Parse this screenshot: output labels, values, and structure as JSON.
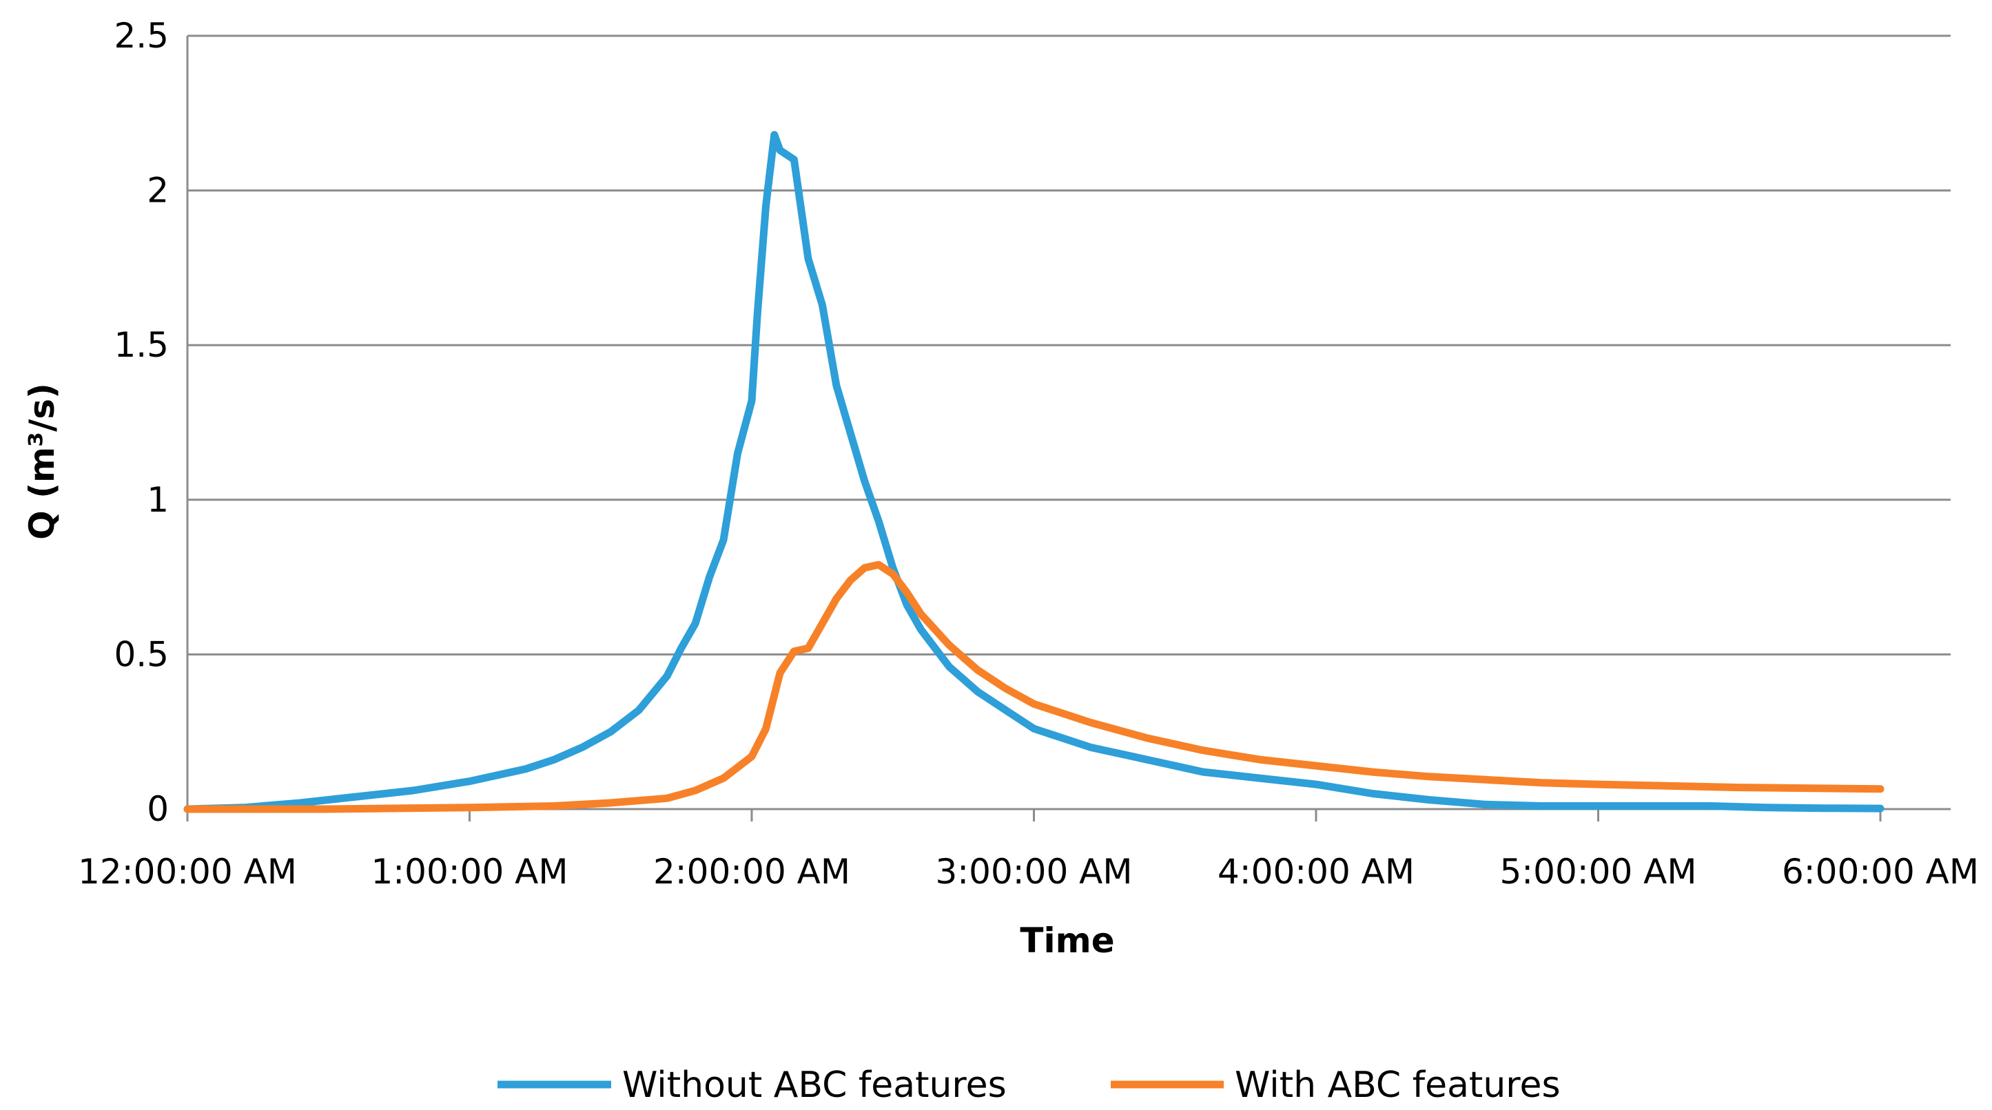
{
  "chart_data": {
    "type": "line",
    "title": "",
    "xlabel": "Time",
    "ylabel": "Q (m³/s)",
    "x_unit": "hours",
    "xlim": [
      0,
      6.25
    ],
    "ylim": [
      0,
      2.5
    ],
    "xticks": [
      {
        "value": 0,
        "label": "12:00:00 AM"
      },
      {
        "value": 1,
        "label": "1:00:00 AM"
      },
      {
        "value": 2,
        "label": "2:00:00 AM"
      },
      {
        "value": 3,
        "label": "3:00:00 AM"
      },
      {
        "value": 4,
        "label": "4:00:00 AM"
      },
      {
        "value": 5,
        "label": "5:00:00 AM"
      },
      {
        "value": 6,
        "label": "6:00:00 AM"
      }
    ],
    "yticks": [
      {
        "value": 0,
        "label": "0"
      },
      {
        "value": 0.5,
        "label": "0.5"
      },
      {
        "value": 1,
        "label": "1"
      },
      {
        "value": 1.5,
        "label": "1.5"
      },
      {
        "value": 2,
        "label": "2"
      },
      {
        "value": 2.5,
        "label": "2.5"
      }
    ],
    "grid": {
      "horizontal": true,
      "vertical": false
    },
    "legend_position": "bottom",
    "series": [
      {
        "name": "Without ABC features",
        "color": "#2e9fd8",
        "x": [
          0,
          0.2,
          0.4,
          0.6,
          0.8,
          1.0,
          1.2,
          1.3,
          1.4,
          1.5,
          1.6,
          1.7,
          1.75,
          1.8,
          1.85,
          1.9,
          1.95,
          2.0,
          2.02,
          2.05,
          2.08,
          2.1,
          2.15,
          2.2,
          2.25,
          2.3,
          2.4,
          2.45,
          2.5,
          2.55,
          2.6,
          2.7,
          2.8,
          2.9,
          3.0,
          3.2,
          3.4,
          3.6,
          3.8,
          4.0,
          4.2,
          4.4,
          4.6,
          4.8,
          5.0,
          5.2,
          5.4,
          5.6,
          5.8,
          6.0
        ],
        "y": [
          0,
          0.005,
          0.02,
          0.04,
          0.06,
          0.09,
          0.13,
          0.16,
          0.2,
          0.25,
          0.32,
          0.43,
          0.52,
          0.6,
          0.75,
          0.87,
          1.15,
          1.32,
          1.6,
          1.95,
          2.18,
          2.13,
          2.1,
          1.78,
          1.63,
          1.37,
          1.06,
          0.93,
          0.78,
          0.66,
          0.58,
          0.46,
          0.38,
          0.32,
          0.26,
          0.2,
          0.16,
          0.12,
          0.1,
          0.08,
          0.05,
          0.03,
          0.015,
          0.01,
          0.01,
          0.01,
          0.01,
          0.005,
          0.003,
          0.002
        ]
      },
      {
        "name": "With ABC features",
        "color": "#f78128",
        "x": [
          0,
          0.5,
          1.0,
          1.3,
          1.5,
          1.7,
          1.8,
          1.9,
          2.0,
          2.05,
          2.1,
          2.15,
          2.2,
          2.25,
          2.3,
          2.35,
          2.4,
          2.45,
          2.5,
          2.55,
          2.6,
          2.7,
          2.8,
          2.9,
          3.0,
          3.2,
          3.4,
          3.6,
          3.8,
          4.0,
          4.2,
          4.4,
          4.6,
          4.8,
          5.0,
          5.5,
          6.0
        ],
        "y": [
          0,
          0,
          0.005,
          0.01,
          0.02,
          0.035,
          0.06,
          0.1,
          0.17,
          0.26,
          0.44,
          0.51,
          0.52,
          0.6,
          0.68,
          0.74,
          0.78,
          0.79,
          0.76,
          0.7,
          0.63,
          0.53,
          0.45,
          0.39,
          0.34,
          0.28,
          0.23,
          0.19,
          0.16,
          0.14,
          0.12,
          0.105,
          0.095,
          0.085,
          0.08,
          0.07,
          0.065
        ]
      }
    ]
  }
}
